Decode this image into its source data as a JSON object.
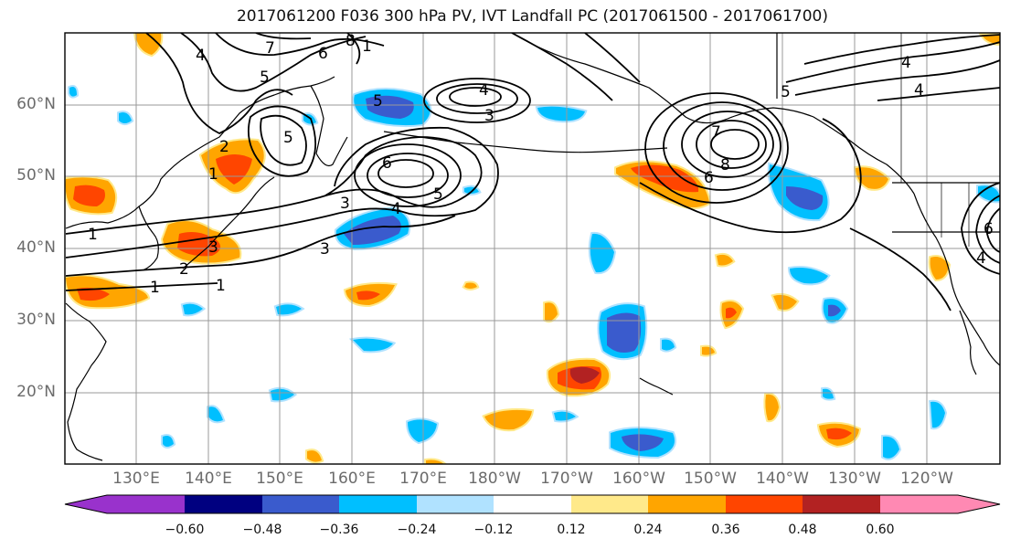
{
  "title": "2017061200 F036 300 hPa PV, IVT Landfall PC (2017061500 - 2017061700)",
  "lat_labels": [
    "60°N",
    "50°N",
    "40°N",
    "30°N",
    "20°N"
  ],
  "lon_labels": [
    "130°E",
    "140°E",
    "150°E",
    "160°E",
    "170°E",
    "180°W",
    "170°W",
    "160°W",
    "150°W",
    "140°W",
    "130°W",
    "120°W"
  ],
  "pv_contour_labels": [
    "7",
    "8",
    "6",
    "1",
    "4",
    "5",
    "5",
    "4",
    "3",
    "5",
    "6",
    "4",
    "5",
    "3",
    "1",
    "3",
    "1",
    "3",
    "2",
    "2",
    "1",
    "1",
    "6",
    "8",
    "7",
    "5",
    "4",
    "4",
    "6",
    "4"
  ],
  "colorbar": {
    "tick_labels": [
      "−0.60",
      "−0.48",
      "−0.36",
      "−0.24",
      "−0.12",
      "0.12",
      "0.24",
      "0.36",
      "0.48",
      "0.60"
    ],
    "colors": [
      "#9932cc",
      "#000080",
      "#3a5bcd",
      "#00bfff",
      "#b0e2ff",
      "#ffffff",
      "#ffe98a",
      "#ffa500",
      "#ff4500",
      "#b22222",
      "#ff89b3"
    ]
  },
  "palette": {
    "neg_light": "#b0e2ff",
    "neg_mid": "#00bfff",
    "neg_strong": "#3a5bcd",
    "neg_extreme": "#000080",
    "pos_light": "#ffe98a",
    "pos_mid": "#ffa500",
    "pos_strong": "#ff4500",
    "pos_extreme": "#b22222",
    "grid": "#999999",
    "coast": "#000000"
  }
}
